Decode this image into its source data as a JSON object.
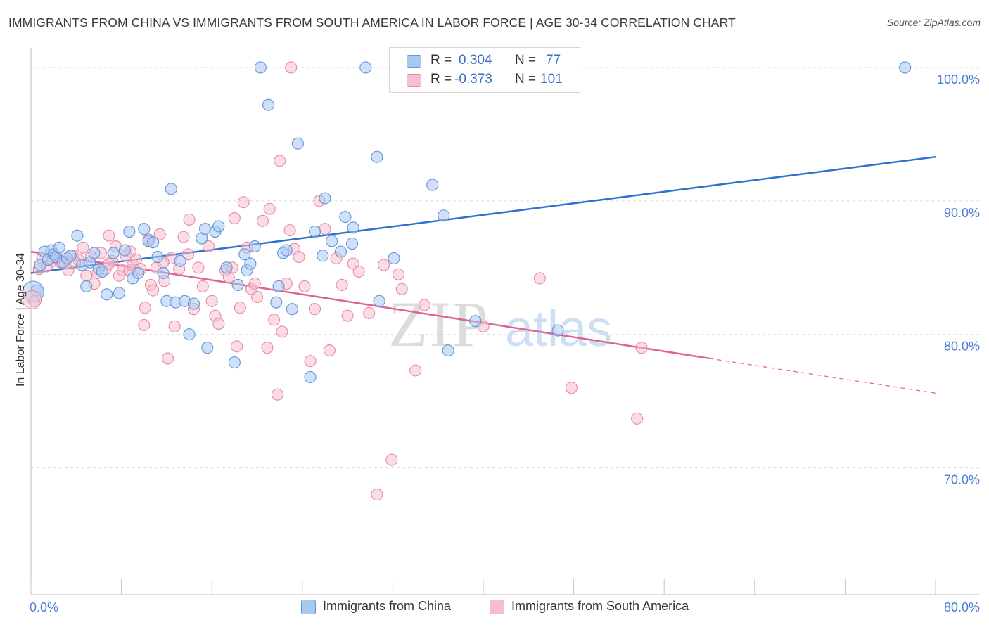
{
  "title": "IMMIGRANTS FROM CHINA VS IMMIGRANTS FROM SOUTH AMERICA IN LABOR FORCE | AGE 30-34 CORRELATION CHART",
  "source": "Source: ZipAtlas.com",
  "watermark": {
    "zip": "ZIP",
    "atlas": "atlas"
  },
  "colors": {
    "china_fill": "#a9c8f0",
    "china_stroke": "#5f95dc",
    "china_line": "#2f6fcf",
    "sa_fill": "#f6bfd0",
    "sa_stroke": "#e78aa7",
    "sa_line": "#e0628e",
    "tick_text": "#4a7fd0",
    "grid": "#dcdcdc"
  },
  "legend": {
    "rows": [
      {
        "r_label": "R =",
        "r_value": "0.304",
        "n_label": "N =",
        "n_value": "77"
      },
      {
        "r_label": "R =",
        "r_value": "-0.373",
        "n_label": "N =",
        "n_value": "101"
      }
    ]
  },
  "bottom_legend": {
    "china": "Immigrants from China",
    "south_america": "Immigrants from South America"
  },
  "chart_data": {
    "type": "scatter",
    "title": "IMMIGRANTS FROM CHINA VS IMMIGRANTS FROM SOUTH AMERICA IN LABOR FORCE | AGE 30-34 CORRELATION CHART",
    "xlabel": "",
    "ylabel": "In Labor Force | Age 30-34",
    "xlim": [
      0,
      80
    ],
    "ylim": [
      60.5,
      102
    ],
    "x_tick_labels": [
      "0.0%",
      "80.0%"
    ],
    "y_ticks": [
      70,
      80,
      90,
      100
    ],
    "y_tick_labels": [
      "70.0%",
      "80.0%",
      "90.0%",
      "100.0%"
    ],
    "grid": true,
    "legend_position": "top-center",
    "series": [
      {
        "name": "Immigrants from China",
        "R": 0.304,
        "N": 77,
        "trend": {
          "x": [
            0,
            80
          ],
          "y": [
            84.6,
            93.3
          ]
        },
        "points": [
          [
            0.5,
            83.3
          ],
          [
            0.8,
            85.2
          ],
          [
            1.2,
            86.2
          ],
          [
            1.5,
            85.6
          ],
          [
            1.8,
            86.3
          ],
          [
            2.0,
            86.0
          ],
          [
            2.2,
            85.8
          ],
          [
            2.5,
            86.5
          ],
          [
            2.8,
            85.4
          ],
          [
            3.2,
            85.7
          ],
          [
            3.5,
            85.9
          ],
          [
            4.1,
            87.4
          ],
          [
            4.5,
            85.2
          ],
          [
            4.9,
            83.6
          ],
          [
            5.2,
            85.4
          ],
          [
            5.6,
            86.1
          ],
          [
            6.0,
            84.9
          ],
          [
            6.3,
            84.7
          ],
          [
            6.7,
            83.0
          ],
          [
            7.3,
            86.1
          ],
          [
            7.8,
            83.1
          ],
          [
            8.3,
            86.3
          ],
          [
            8.7,
            87.7
          ],
          [
            9.0,
            84.2
          ],
          [
            9.5,
            84.6
          ],
          [
            10.0,
            87.9
          ],
          [
            10.4,
            87.0
          ],
          [
            10.8,
            86.9
          ],
          [
            11.2,
            85.8
          ],
          [
            11.7,
            84.6
          ],
          [
            12.0,
            82.5
          ],
          [
            12.4,
            90.9
          ],
          [
            12.8,
            82.4
          ],
          [
            13.2,
            85.5
          ],
          [
            13.6,
            82.5
          ],
          [
            14.0,
            80.0
          ],
          [
            14.4,
            82.3
          ],
          [
            15.1,
            87.2
          ],
          [
            15.4,
            87.9
          ],
          [
            15.6,
            79.0
          ],
          [
            16.3,
            87.7
          ],
          [
            16.6,
            88.1
          ],
          [
            17.3,
            85.0
          ],
          [
            18.0,
            77.9
          ],
          [
            18.3,
            83.7
          ],
          [
            18.9,
            86.0
          ],
          [
            19.1,
            84.8
          ],
          [
            19.4,
            85.3
          ],
          [
            19.8,
            86.6
          ],
          [
            20.3,
            100.0
          ],
          [
            21.0,
            97.2
          ],
          [
            21.7,
            82.4
          ],
          [
            21.9,
            83.6
          ],
          [
            22.3,
            86.1
          ],
          [
            22.6,
            86.3
          ],
          [
            23.1,
            81.9
          ],
          [
            23.6,
            94.3
          ],
          [
            24.7,
            76.8
          ],
          [
            25.1,
            87.7
          ],
          [
            25.8,
            85.9
          ],
          [
            26.0,
            90.2
          ],
          [
            26.6,
            87.0
          ],
          [
            27.4,
            86.2
          ],
          [
            27.8,
            88.8
          ],
          [
            28.4,
            86.8
          ],
          [
            28.5,
            88.0
          ],
          [
            29.6,
            100.0
          ],
          [
            30.6,
            93.3
          ],
          [
            30.8,
            82.5
          ],
          [
            32.1,
            85.7
          ],
          [
            32.6,
            100.0
          ],
          [
            35.5,
            91.2
          ],
          [
            36.5,
            88.9
          ],
          [
            36.9,
            78.8
          ],
          [
            39.3,
            81.0
          ],
          [
            46.6,
            80.3
          ],
          [
            77.3,
            100.0
          ]
        ]
      },
      {
        "name": "Immigrants from South America",
        "R": -0.373,
        "N": 101,
        "trend": {
          "x": [
            0,
            60
          ],
          "y": [
            86.2,
            78.2
          ]
        },
        "trend_extension": {
          "x": [
            60,
            80
          ],
          "y": [
            78.2,
            75.6
          ]
        },
        "points": [
          [
            0.3,
            82.5
          ],
          [
            0.7,
            84.9
          ],
          [
            1.0,
            85.7
          ],
          [
            1.4,
            85.1
          ],
          [
            1.9,
            85.5
          ],
          [
            2.3,
            85.7
          ],
          [
            2.6,
            85.4
          ],
          [
            3.0,
            85.3
          ],
          [
            3.3,
            84.8
          ],
          [
            3.7,
            85.9
          ],
          [
            4.2,
            85.6
          ],
          [
            4.6,
            86.5
          ],
          [
            4.9,
            84.4
          ],
          [
            5.3,
            85.8
          ],
          [
            5.6,
            83.8
          ],
          [
            5.9,
            84.6
          ],
          [
            6.2,
            86.1
          ],
          [
            6.6,
            84.9
          ],
          [
            6.9,
            87.4
          ],
          [
            7.2,
            85.5
          ],
          [
            7.5,
            86.6
          ],
          [
            7.8,
            84.4
          ],
          [
            8.1,
            84.8
          ],
          [
            8.4,
            85.9
          ],
          [
            8.7,
            84.8
          ],
          [
            9.0,
            85.2
          ],
          [
            9.3,
            85.6
          ],
          [
            9.7,
            84.9
          ],
          [
            10.0,
            80.7
          ],
          [
            10.1,
            82.0
          ],
          [
            10.4,
            87.1
          ],
          [
            10.6,
            83.7
          ],
          [
            10.8,
            83.3
          ],
          [
            11.1,
            85.0
          ],
          [
            11.4,
            87.5
          ],
          [
            11.8,
            84.0
          ],
          [
            12.1,
            78.2
          ],
          [
            12.4,
            85.7
          ],
          [
            12.7,
            80.6
          ],
          [
            13.1,
            84.9
          ],
          [
            13.5,
            87.3
          ],
          [
            14.0,
            88.6
          ],
          [
            14.4,
            81.9
          ],
          [
            14.8,
            85.0
          ],
          [
            15.2,
            83.6
          ],
          [
            15.7,
            86.6
          ],
          [
            16.0,
            82.5
          ],
          [
            16.3,
            81.4
          ],
          [
            16.6,
            80.8
          ],
          [
            17.2,
            84.8
          ],
          [
            17.5,
            84.3
          ],
          [
            17.8,
            85.0
          ],
          [
            18.0,
            88.7
          ],
          [
            18.2,
            79.1
          ],
          [
            18.5,
            82.0
          ],
          [
            18.8,
            89.9
          ],
          [
            19.1,
            86.5
          ],
          [
            19.5,
            83.4
          ],
          [
            19.8,
            83.8
          ],
          [
            20.0,
            82.8
          ],
          [
            20.5,
            88.5
          ],
          [
            20.9,
            79.0
          ],
          [
            21.1,
            89.4
          ],
          [
            21.5,
            81.1
          ],
          [
            21.8,
            75.5
          ],
          [
            22.2,
            80.2
          ],
          [
            22.6,
            83.8
          ],
          [
            22.9,
            87.8
          ],
          [
            23.3,
            86.4
          ],
          [
            23.7,
            85.8
          ],
          [
            24.2,
            83.6
          ],
          [
            24.7,
            78.0
          ],
          [
            25.1,
            81.9
          ],
          [
            25.5,
            90.0
          ],
          [
            26.0,
            87.9
          ],
          [
            26.4,
            78.8
          ],
          [
            27.0,
            85.7
          ],
          [
            27.5,
            83.7
          ],
          [
            28.0,
            81.4
          ],
          [
            28.5,
            85.3
          ],
          [
            29.0,
            84.7
          ],
          [
            29.9,
            81.6
          ],
          [
            30.6,
            68.0
          ],
          [
            31.2,
            85.2
          ],
          [
            31.9,
            70.6
          ],
          [
            32.5,
            84.5
          ],
          [
            32.8,
            83.4
          ],
          [
            34.0,
            77.3
          ],
          [
            34.8,
            82.2
          ],
          [
            40.0,
            80.6
          ],
          [
            45.0,
            84.2
          ],
          [
            47.8,
            76.0
          ],
          [
            53.6,
            73.7
          ],
          [
            54.0,
            79.0
          ],
          [
            22.0,
            93.0
          ],
          [
            23.0,
            100.0
          ],
          [
            8.8,
            86.2
          ],
          [
            13.9,
            86.0
          ],
          [
            11.7,
            85.4
          ],
          [
            6.9,
            85.3
          ],
          [
            3.9,
            85.4
          ]
        ]
      }
    ]
  }
}
